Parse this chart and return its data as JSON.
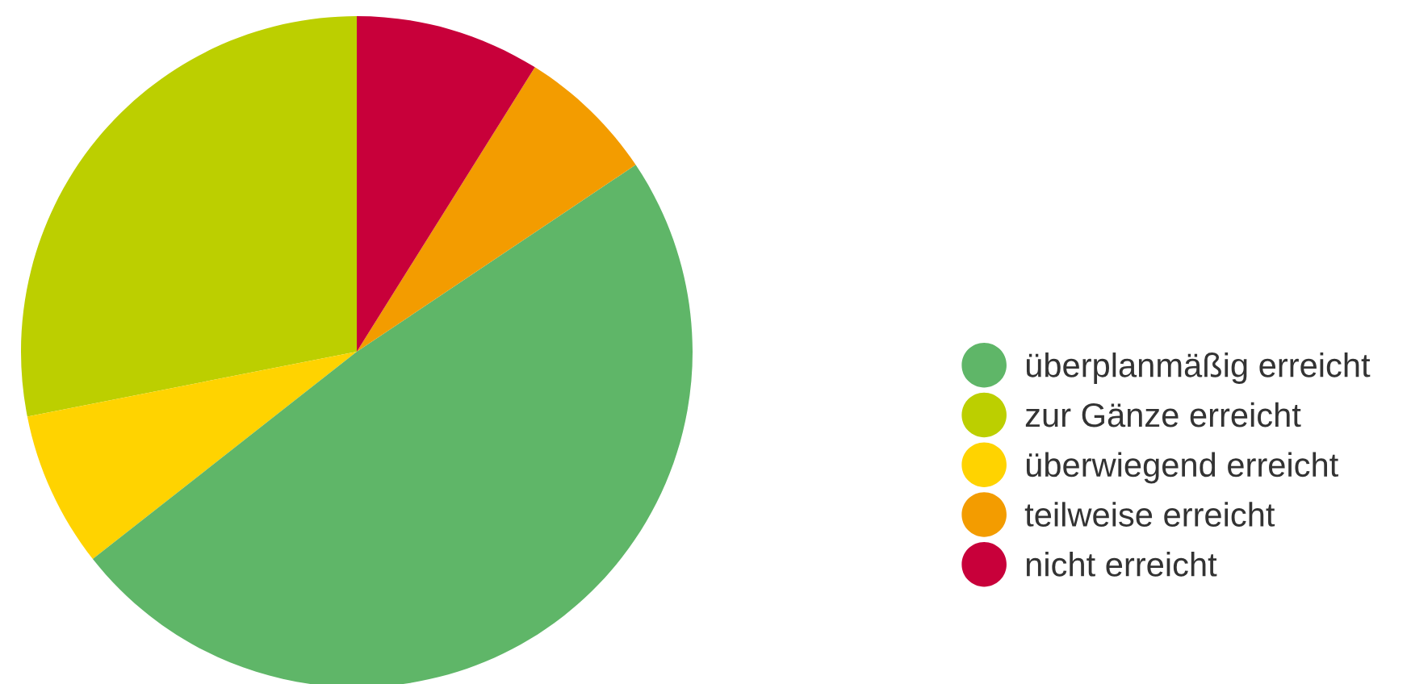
{
  "chart_data": {
    "type": "pie",
    "categories": [
      "zur Gänze erreicht",
      "überwiegend erreicht",
      "überplanmäßig erreicht",
      "teilweise erreicht",
      "nicht erreicht"
    ],
    "values": [
      28.1,
      7.5,
      48.8,
      6.7,
      8.9
    ],
    "colors": [
      "#bccf00",
      "#ffd300",
      "#5fb668",
      "#f39c00",
      "#c8003a"
    ],
    "legend": "right"
  }
}
